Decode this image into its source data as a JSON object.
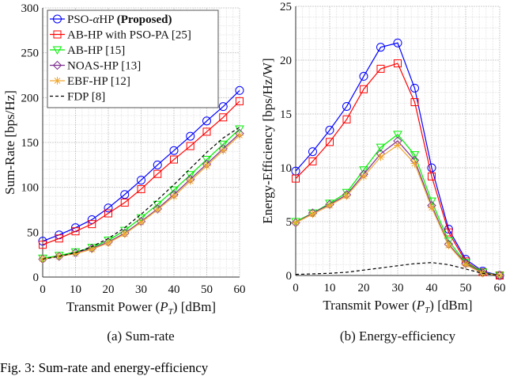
{
  "chart_data": [
    {
      "type": "line",
      "title": "",
      "caption": "(a)  Sum-rate",
      "xlabel": "Transmit Power (P_T) [dBm]",
      "ylabel": "Sum-Rate [bps/Hz]",
      "xlim": [
        0,
        60
      ],
      "ylim": [
        0,
        300
      ],
      "xticks": [
        0,
        10,
        20,
        30,
        40,
        50,
        60
      ],
      "yticks": [
        0,
        50,
        100,
        150,
        200,
        250,
        300
      ],
      "grid": true,
      "legend": "top-left",
      "x": [
        0,
        5,
        10,
        15,
        20,
        25,
        30,
        35,
        40,
        45,
        50,
        55,
        60
      ],
      "series": [
        {
          "name": "PSO-αHP (Proposed)",
          "color": "#0000ff",
          "marker": "circle",
          "values": [
            40,
            47,
            55,
            64,
            77,
            92,
            108,
            125,
            141,
            157,
            174,
            190,
            208
          ]
        },
        {
          "name": "AB-HP with PSO-PA [25]",
          "color": "#ff0000",
          "marker": "square",
          "values": [
            36,
            43,
            51,
            59,
            71,
            83,
            98,
            115,
            131,
            146,
            162,
            178,
            196
          ]
        },
        {
          "name": "AB-HP [15]",
          "color": "#00ee00",
          "marker": "triangle-down",
          "values": [
            21,
            24,
            28,
            33,
            41,
            52,
            66,
            81,
            97,
            114,
            131,
            148,
            165
          ]
        },
        {
          "name": "NOAS-HP [13]",
          "color": "#7e2f8e",
          "marker": "diamond",
          "values": [
            20,
            23,
            27,
            32,
            39,
            49,
            62,
            76,
            92,
            109,
            126,
            143,
            160
          ]
        },
        {
          "name": "EBF-HP [12]",
          "color": "#f0a830",
          "marker": "asterisk",
          "values": [
            20,
            23,
            26,
            31,
            38,
            48,
            61,
            75,
            90,
            107,
            124,
            141,
            158
          ]
        },
        {
          "name": "FDP [8]",
          "color": "#000000",
          "marker": "none",
          "dash": true,
          "values": [
            20,
            23,
            27,
            34,
            43,
            55,
            70,
            86,
            103,
            121,
            139,
            155,
            167
          ]
        }
      ]
    },
    {
      "type": "line",
      "title": "",
      "caption": "(b)  Energy-efficiency",
      "xlabel": "Transmit Power (P_T) [dBm]",
      "ylabel": "Energy-Efficiency [bps/Hz/W]",
      "xlim": [
        0,
        60
      ],
      "ylim": [
        0,
        25
      ],
      "xticks": [
        0,
        10,
        20,
        30,
        40,
        50,
        60
      ],
      "yticks": [
        0,
        5,
        10,
        15,
        20,
        25
      ],
      "grid": true,
      "x": [
        0,
        5,
        10,
        15,
        20,
        25,
        30,
        35,
        40,
        45,
        50,
        55,
        60
      ],
      "series": [
        {
          "color": "#0000ff",
          "marker": "circle",
          "values": [
            9.7,
            11.5,
            13.5,
            15.7,
            18.5,
            21.2,
            21.6,
            17.4,
            10,
            4.3,
            1.5,
            0.4,
            0
          ]
        },
        {
          "color": "#ff0000",
          "marker": "square",
          "values": [
            9,
            10.6,
            12.4,
            14.5,
            17.3,
            19.2,
            19.7,
            16.1,
            9.2,
            4,
            1.3,
            0.3,
            0
          ]
        },
        {
          "color": "#00ee00",
          "marker": "triangle-down",
          "values": [
            5,
            5.8,
            6.7,
            7.7,
            9.8,
            11.9,
            13.1,
            11.2,
            6.9,
            3.2,
            1.2,
            0.3,
            0
          ]
        },
        {
          "color": "#7e2f8e",
          "marker": "diamond",
          "values": [
            4.9,
            5.8,
            6.6,
            7.5,
            9.4,
            11.3,
            12.5,
            10.7,
            6.5,
            2.9,
            1.1,
            0.25,
            0
          ]
        },
        {
          "color": "#f0a830",
          "marker": "asterisk",
          "values": [
            4.9,
            5.7,
            6.5,
            7.4,
            9.2,
            11,
            12.1,
            10.4,
            6.3,
            2.8,
            1.0,
            0.2,
            0
          ]
        },
        {
          "color": "#000000",
          "marker": "none",
          "dash": true,
          "values": [
            0.1,
            0.15,
            0.2,
            0.3,
            0.5,
            0.7,
            0.9,
            1.1,
            1.2,
            1.0,
            0.6,
            0.2,
            0
          ]
        }
      ]
    }
  ],
  "figure_caption": "Fig. 3: Sum-rate and energy-efficiency"
}
